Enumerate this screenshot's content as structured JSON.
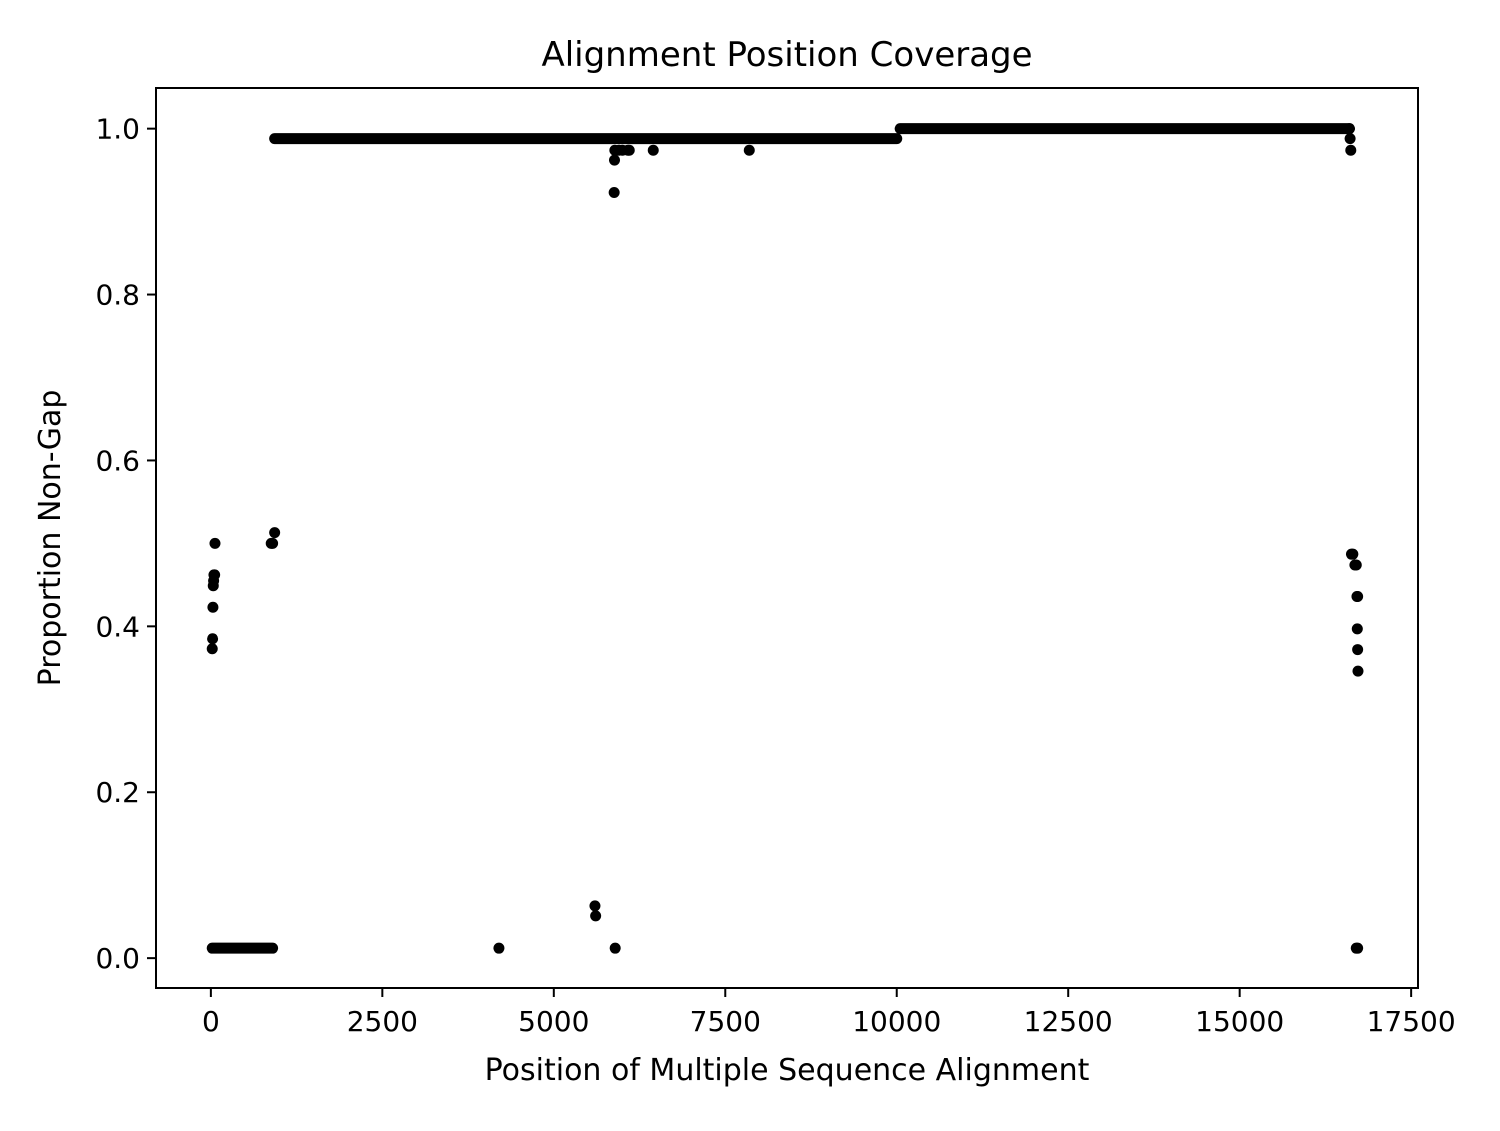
{
  "chart_data": {
    "type": "scatter",
    "title": "Alignment Position Coverage",
    "xlabel": "Position of Multiple Sequence Alignment",
    "ylabel": "Proportion Non-Gap",
    "xlim": [
      -800,
      17600
    ],
    "ylim": [
      -0.036,
      1.049
    ],
    "x_ticks": [
      0,
      2500,
      5000,
      7500,
      10000,
      12500,
      15000,
      17500
    ],
    "x_tick_labels": [
      "0",
      "2500",
      "5000",
      "7500",
      "10000",
      "12500",
      "15000",
      "17500"
    ],
    "y_ticks": [
      0.0,
      0.2,
      0.4,
      0.6,
      0.8,
      1.0
    ],
    "y_tick_labels": [
      "0.0",
      "0.2",
      "0.4",
      "0.6",
      "0.8",
      "1.0"
    ],
    "grid": false,
    "legend": "none",
    "marker_color": "#000000",
    "runs": [
      {
        "x_start": 20,
        "x_end": 900,
        "y": 0.012
      },
      {
        "x_start": 930,
        "x_end": 10000,
        "y": 0.988
      },
      {
        "x_start": 10050,
        "x_end": 16600,
        "y": 1.0
      }
    ],
    "points": [
      {
        "x": 20,
        "y": 0.373
      },
      {
        "x": 25,
        "y": 0.385
      },
      {
        "x": 30,
        "y": 0.423
      },
      {
        "x": 35,
        "y": 0.449
      },
      {
        "x": 40,
        "y": 0.455
      },
      {
        "x": 45,
        "y": 0.462
      },
      {
        "x": 55,
        "y": 0.462
      },
      {
        "x": 60,
        "y": 0.5
      },
      {
        "x": 880,
        "y": 0.5
      },
      {
        "x": 900,
        "y": 0.5
      },
      {
        "x": 930,
        "y": 0.513
      },
      {
        "x": 4200,
        "y": 0.012
      },
      {
        "x": 5600,
        "y": 0.063
      },
      {
        "x": 5610,
        "y": 0.051
      },
      {
        "x": 5880,
        "y": 0.923
      },
      {
        "x": 5885,
        "y": 0.962
      },
      {
        "x": 5890,
        "y": 0.974
      },
      {
        "x": 5895,
        "y": 0.012
      },
      {
        "x": 5950,
        "y": 0.974
      },
      {
        "x": 6000,
        "y": 0.974
      },
      {
        "x": 6080,
        "y": 0.974
      },
      {
        "x": 6100,
        "y": 0.974
      },
      {
        "x": 6450,
        "y": 0.974
      },
      {
        "x": 7850,
        "y": 0.974
      },
      {
        "x": 16600,
        "y": 1.0
      },
      {
        "x": 16610,
        "y": 0.988
      },
      {
        "x": 16620,
        "y": 0.974
      },
      {
        "x": 16630,
        "y": 0.487
      },
      {
        "x": 16650,
        "y": 0.487
      },
      {
        "x": 16680,
        "y": 0.474
      },
      {
        "x": 16700,
        "y": 0.474
      },
      {
        "x": 16710,
        "y": 0.436
      },
      {
        "x": 16720,
        "y": 0.436
      },
      {
        "x": 16715,
        "y": 0.397
      },
      {
        "x": 16720,
        "y": 0.372
      },
      {
        "x": 16725,
        "y": 0.346
      },
      {
        "x": 16700,
        "y": 0.012
      },
      {
        "x": 16720,
        "y": 0.012
      }
    ]
  }
}
